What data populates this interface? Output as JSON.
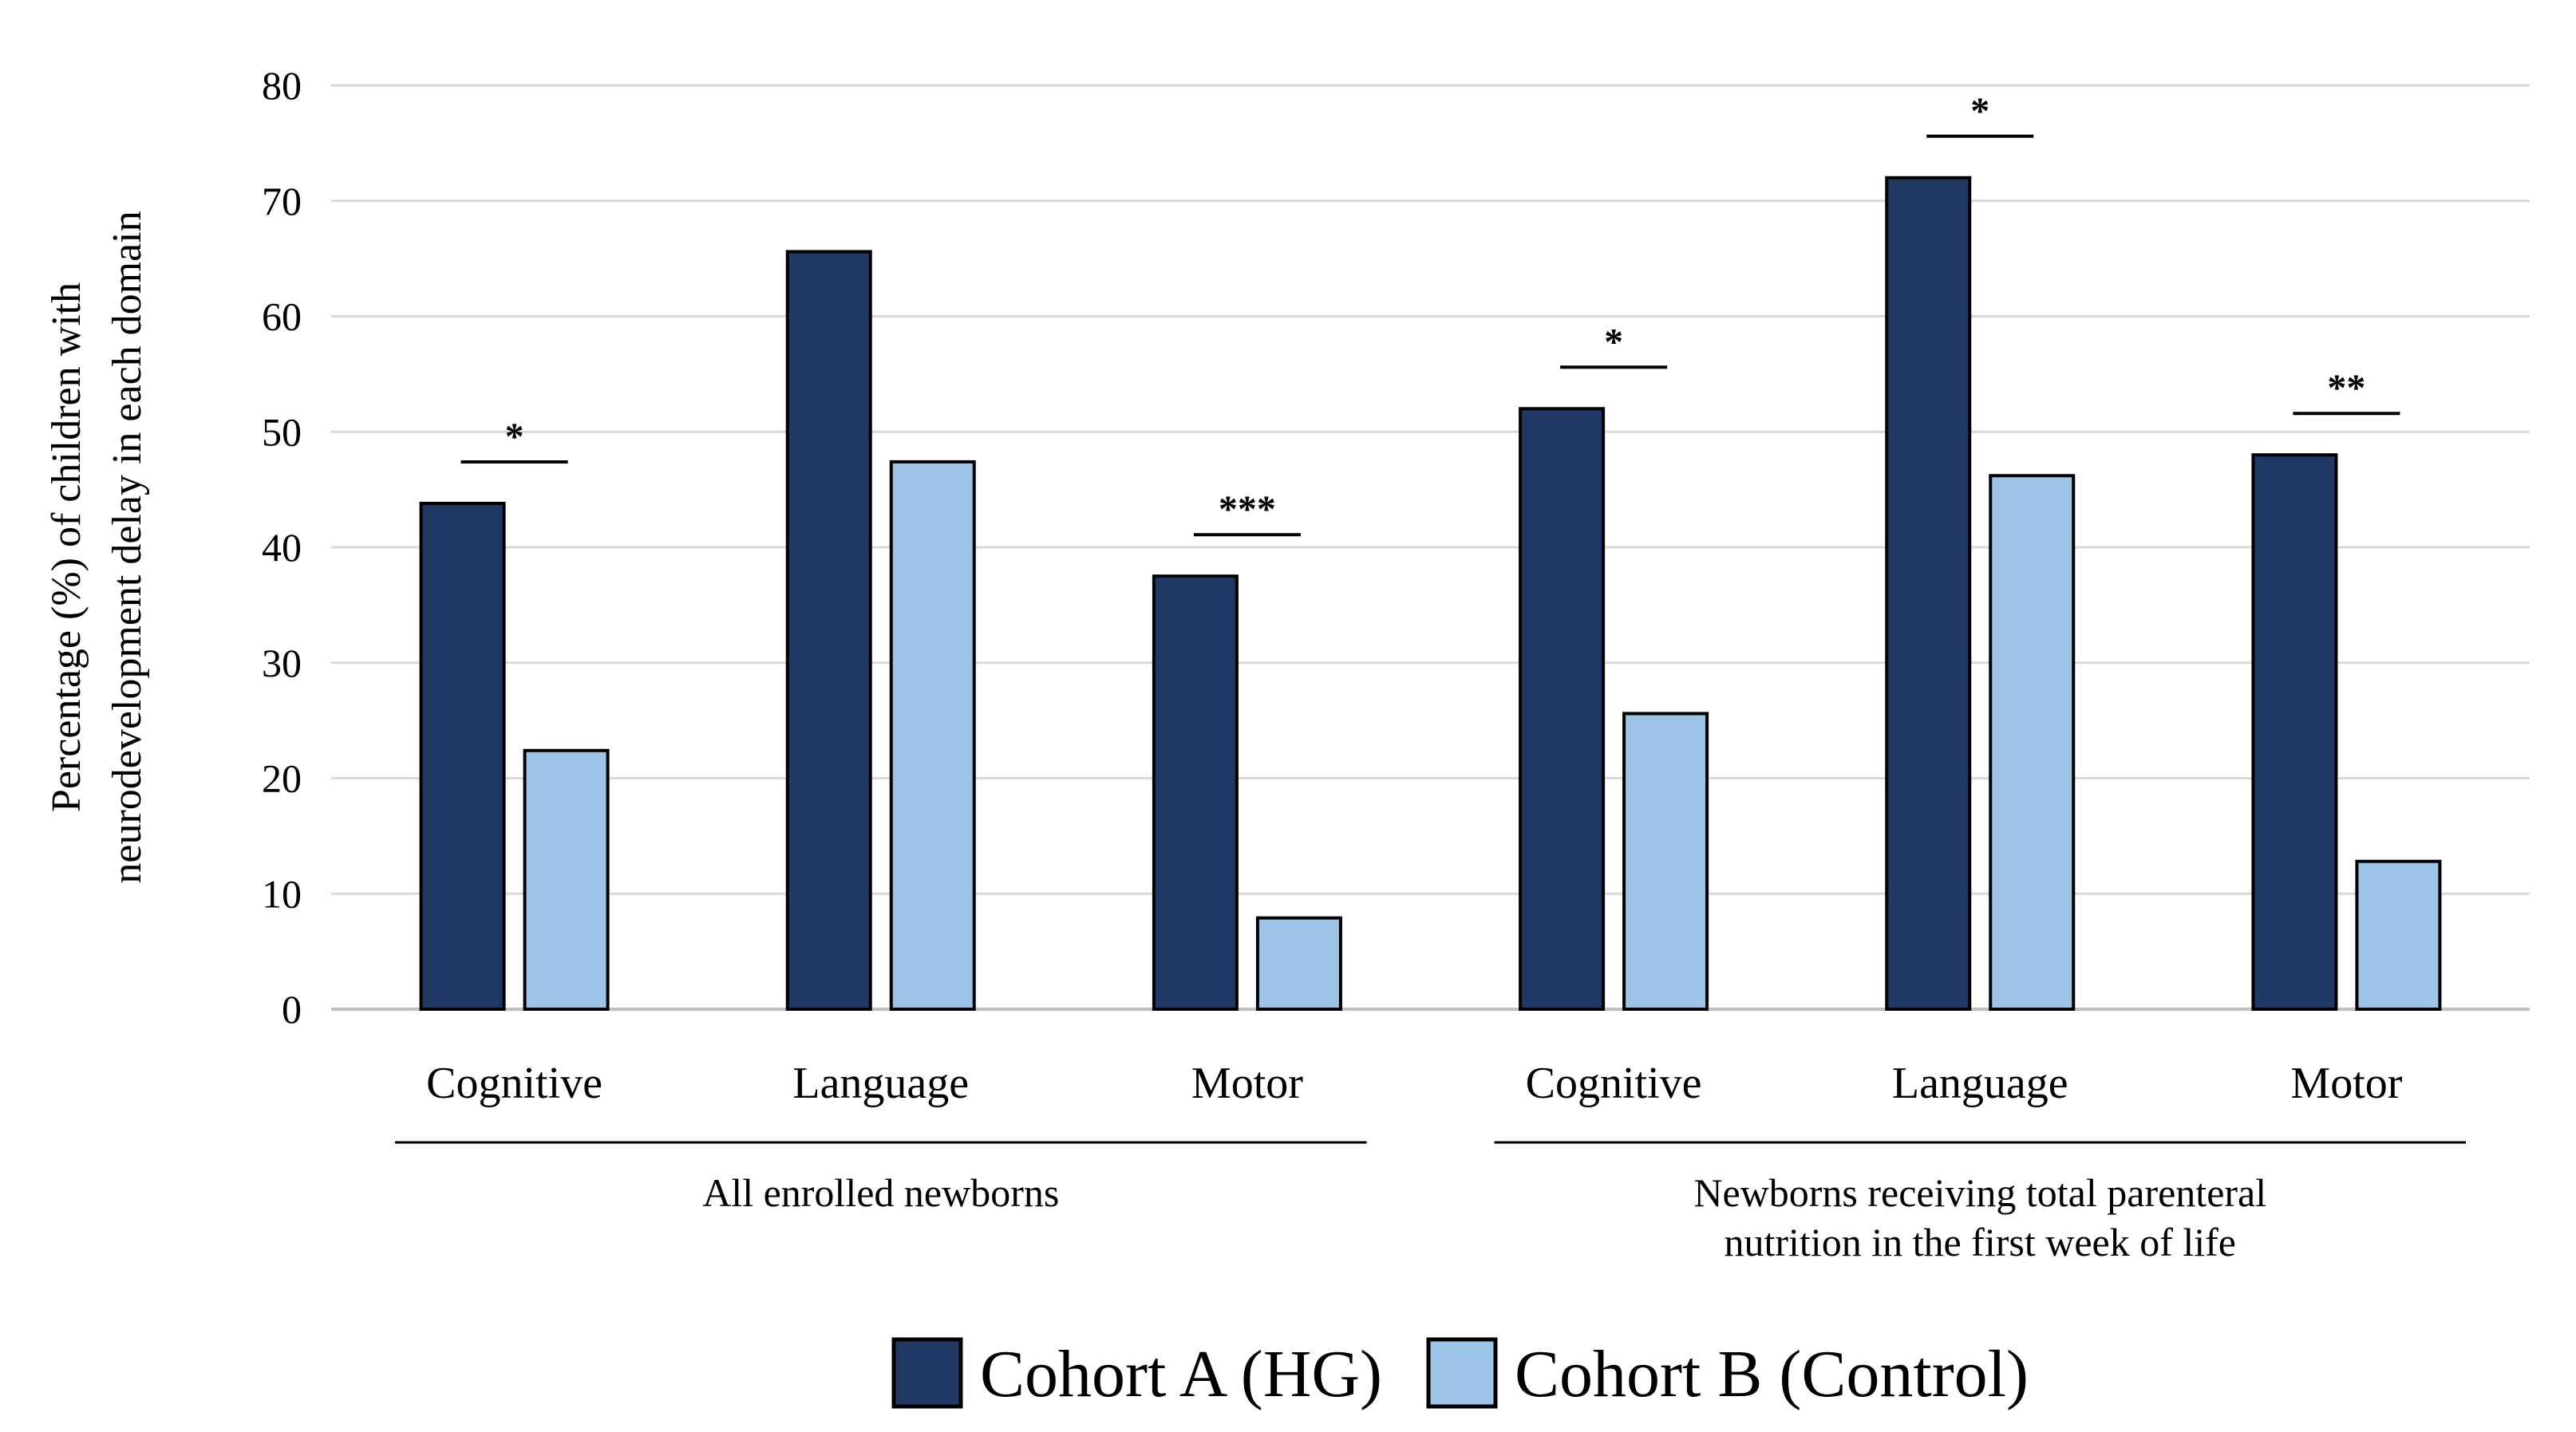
{
  "chart_data": {
    "type": "bar",
    "title": "",
    "ylabel_lines": [
      "Percentage (%) of children with",
      "neurodevelopment delay in each domain"
    ],
    "xlabel": "",
    "ylim": [
      0,
      80
    ],
    "yticks": [
      0,
      10,
      20,
      30,
      40,
      50,
      60,
      70,
      80
    ],
    "grid": true,
    "legend_position": "bottom-center",
    "groups": [
      {
        "label_lines": [
          "All enrolled newborns"
        ],
        "categories": [
          "Cognitive",
          "Language",
          "Motor"
        ]
      },
      {
        "label_lines": [
          "Newborns receiving total parenteral",
          "nutrition in the first week of life"
        ],
        "categories": [
          "Cognitive",
          "Language",
          "Motor"
        ]
      }
    ],
    "categories": [
      "Cognitive",
      "Language",
      "Motor",
      "Cognitive",
      "Language",
      "Motor"
    ],
    "series": [
      {
        "name": "Cohort A (HG)",
        "color": "#203864",
        "values": [
          43.8,
          65.6,
          37.5,
          52.0,
          72.0,
          48.0
        ]
      },
      {
        "name": "Cohort B (Control)",
        "color": "#9DC3E6",
        "values": [
          22.4,
          47.4,
          7.9,
          25.6,
          46.2,
          12.8
        ]
      }
    ],
    "significance": [
      "*",
      "",
      "***",
      "*",
      "*",
      "**"
    ]
  }
}
